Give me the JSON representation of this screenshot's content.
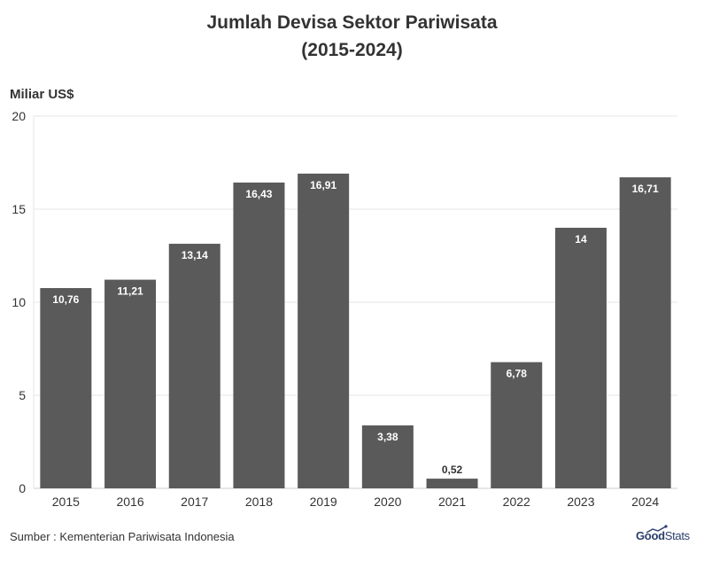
{
  "title_line1": "Jumlah Devisa Sektor Pariwisata",
  "title_line2": "(2015-2024)",
  "source": "Sumber : Kementerian Pariwisata Indonesia",
  "logo": {
    "main": "Good",
    "sub": "Stats"
  },
  "colors": {
    "bar": "#5a5a5a",
    "grid": "#e6e6e6",
    "text": "#333333",
    "logo": "#2a3d6b"
  },
  "chart_data": {
    "type": "bar",
    "title": "Jumlah Devisa Sektor Pariwisata (2015-2024)",
    "ylabel": "Miliar US$",
    "xlabel": "",
    "categories": [
      "2015",
      "2016",
      "2017",
      "2018",
      "2019",
      "2020",
      "2021",
      "2022",
      "2023",
      "2024"
    ],
    "values": [
      10.76,
      11.21,
      13.14,
      16.43,
      16.91,
      3.38,
      0.52,
      6.78,
      14,
      16.71
    ],
    "data_labels": [
      "10,76",
      "11,21",
      "13,14",
      "16,43",
      "16,91",
      "3,38",
      "0,52",
      "6,78",
      "14",
      "16,71"
    ],
    "ylim": [
      0,
      20
    ],
    "yticks": [
      0,
      5,
      10,
      15,
      20
    ],
    "grid": true,
    "legend": "none"
  }
}
